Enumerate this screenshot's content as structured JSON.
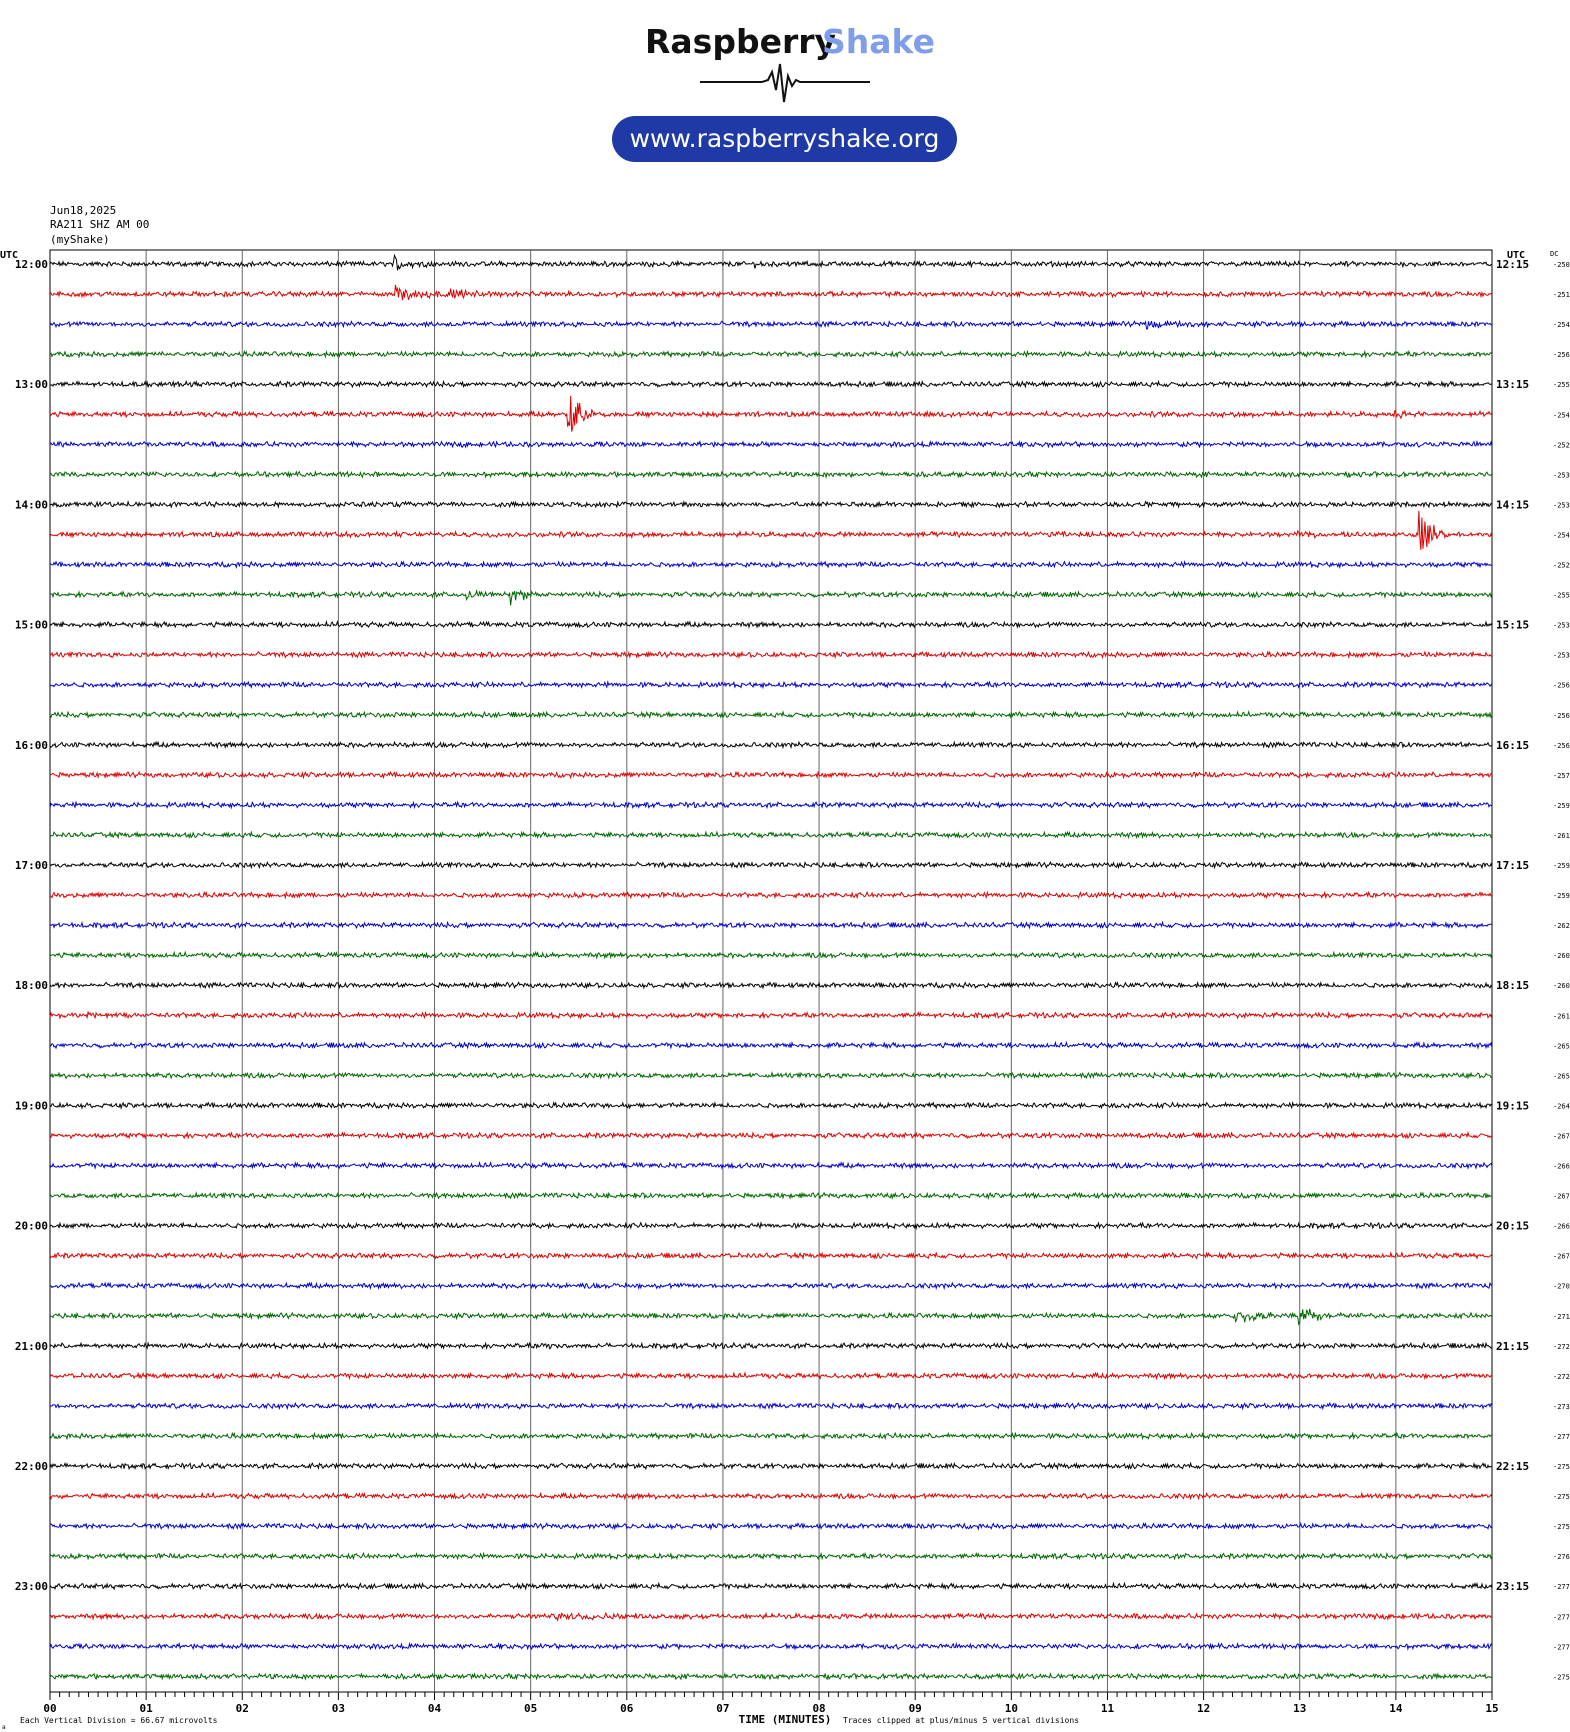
{
  "header": {
    "logo_part1": "Raspberry",
    "logo_part2": "Shake",
    "url": "www.raspberryshake.org",
    "date": "Jun18,2025",
    "station": "RA211 SHZ AM 00",
    "source": "(myShake)"
  },
  "colors": {
    "trace_cycle": [
      "#000000",
      "#dd0000",
      "#0000cc",
      "#006600"
    ],
    "logo_blue": "#7f9de8",
    "pill": "#1f3aa6",
    "grid": "#555555"
  },
  "chart_data": {
    "type": "line",
    "title": "",
    "xlabel": "TIME (MINUTES)",
    "ylabel": "",
    "left_axis_title": "UTC",
    "right_axis_title": "UTC",
    "dc_title": "DC",
    "xlim": [
      0,
      15
    ],
    "x_ticks": [
      "00",
      "01",
      "02",
      "03",
      "04",
      "05",
      "06",
      "07",
      "08",
      "09",
      "10",
      "11",
      "12",
      "13",
      "14",
      "15"
    ],
    "left_labels": [
      "12:00",
      "13:00",
      "14:00",
      "15:00",
      "16:00",
      "17:00",
      "18:00",
      "19:00",
      "20:00",
      "21:00",
      "22:00",
      "23:00"
    ],
    "right_labels": [
      "12:15",
      "13:15",
      "14:15",
      "15:15",
      "16:15",
      "17:15",
      "18:15",
      "19:15",
      "20:15",
      "21:15",
      "22:15",
      "23:15"
    ],
    "dc_offsets": [
      -250,
      -251,
      -254,
      -256,
      -255,
      -254,
      -252,
      -253,
      -253,
      -254,
      -252,
      -255,
      -253,
      -253,
      -256,
      -256,
      -256,
      -257,
      -259,
      -261,
      -259,
      -259,
      -262,
      -260,
      -260,
      -261,
      -265,
      -265,
      -264,
      -267,
      -266,
      -267,
      -266,
      -267,
      -270,
      -271,
      -272,
      -272,
      -273,
      -277,
      -275,
      -275,
      -275,
      -276,
      -277,
      -277,
      -277,
      -275
    ],
    "rows_per_hour": 4,
    "minutes_per_row": 15,
    "events": [
      {
        "row": 0,
        "minute": 3.6,
        "amp": 1.8,
        "dur": 0.12
      },
      {
        "row": 0,
        "minute": 7.35,
        "amp": 0.5,
        "dur": 0.2
      },
      {
        "row": 0,
        "minute": 6.45,
        "amp": 0.4,
        "dur": 0.08
      },
      {
        "row": 1,
        "minute": 3.6,
        "amp": 1.6,
        "dur": 0.35
      },
      {
        "row": 1,
        "minute": 4.15,
        "amp": 1.0,
        "dur": 0.25
      },
      {
        "row": 1,
        "minute": 1.8,
        "amp": 0.4,
        "dur": 0.1
      },
      {
        "row": 2,
        "minute": 11.4,
        "amp": 0.9,
        "dur": 0.3
      },
      {
        "row": 4,
        "minute": 0.85,
        "amp": 0.3,
        "dur": 0.3
      },
      {
        "row": 5,
        "minute": 5.4,
        "amp": 5,
        "dur": 0.15
      },
      {
        "row": 5,
        "minute": 14.0,
        "amp": 0.5,
        "dur": 0.3
      },
      {
        "row": 9,
        "minute": 3.0,
        "amp": 0.6,
        "dur": 0.1
      },
      {
        "row": 9,
        "minute": 10.35,
        "amp": 0.5,
        "dur": 0.2
      },
      {
        "row": 9,
        "minute": 12.9,
        "amp": 0.4,
        "dur": 0.3
      },
      {
        "row": 9,
        "minute": 14.25,
        "amp": 5,
        "dur": 0.15
      },
      {
        "row": 11,
        "minute": 4.35,
        "amp": 1.0,
        "dur": 0.15
      },
      {
        "row": 11,
        "minute": 4.8,
        "amp": 1.8,
        "dur": 0.15
      },
      {
        "row": 25,
        "minute": 0.4,
        "amp": 0.5,
        "dur": 0.2
      },
      {
        "row": 28,
        "minute": 5.7,
        "amp": 0.4,
        "dur": 0.3
      },
      {
        "row": 35,
        "minute": 12.35,
        "amp": 1.5,
        "dur": 0.25
      },
      {
        "row": 35,
        "minute": 13.0,
        "amp": 1.6,
        "dur": 0.3
      },
      {
        "row": 36,
        "minute": 5.1,
        "amp": 0.3,
        "dur": 0.3
      },
      {
        "row": 45,
        "minute": 5.3,
        "amp": 0.6,
        "dur": 0.6
      }
    ],
    "footer_left": "Each Vertical Division = 66.67 microvolts",
    "footer_right": "Traces clipped at plus/minus 5 vertical divisions",
    "corner_mark": "a"
  }
}
